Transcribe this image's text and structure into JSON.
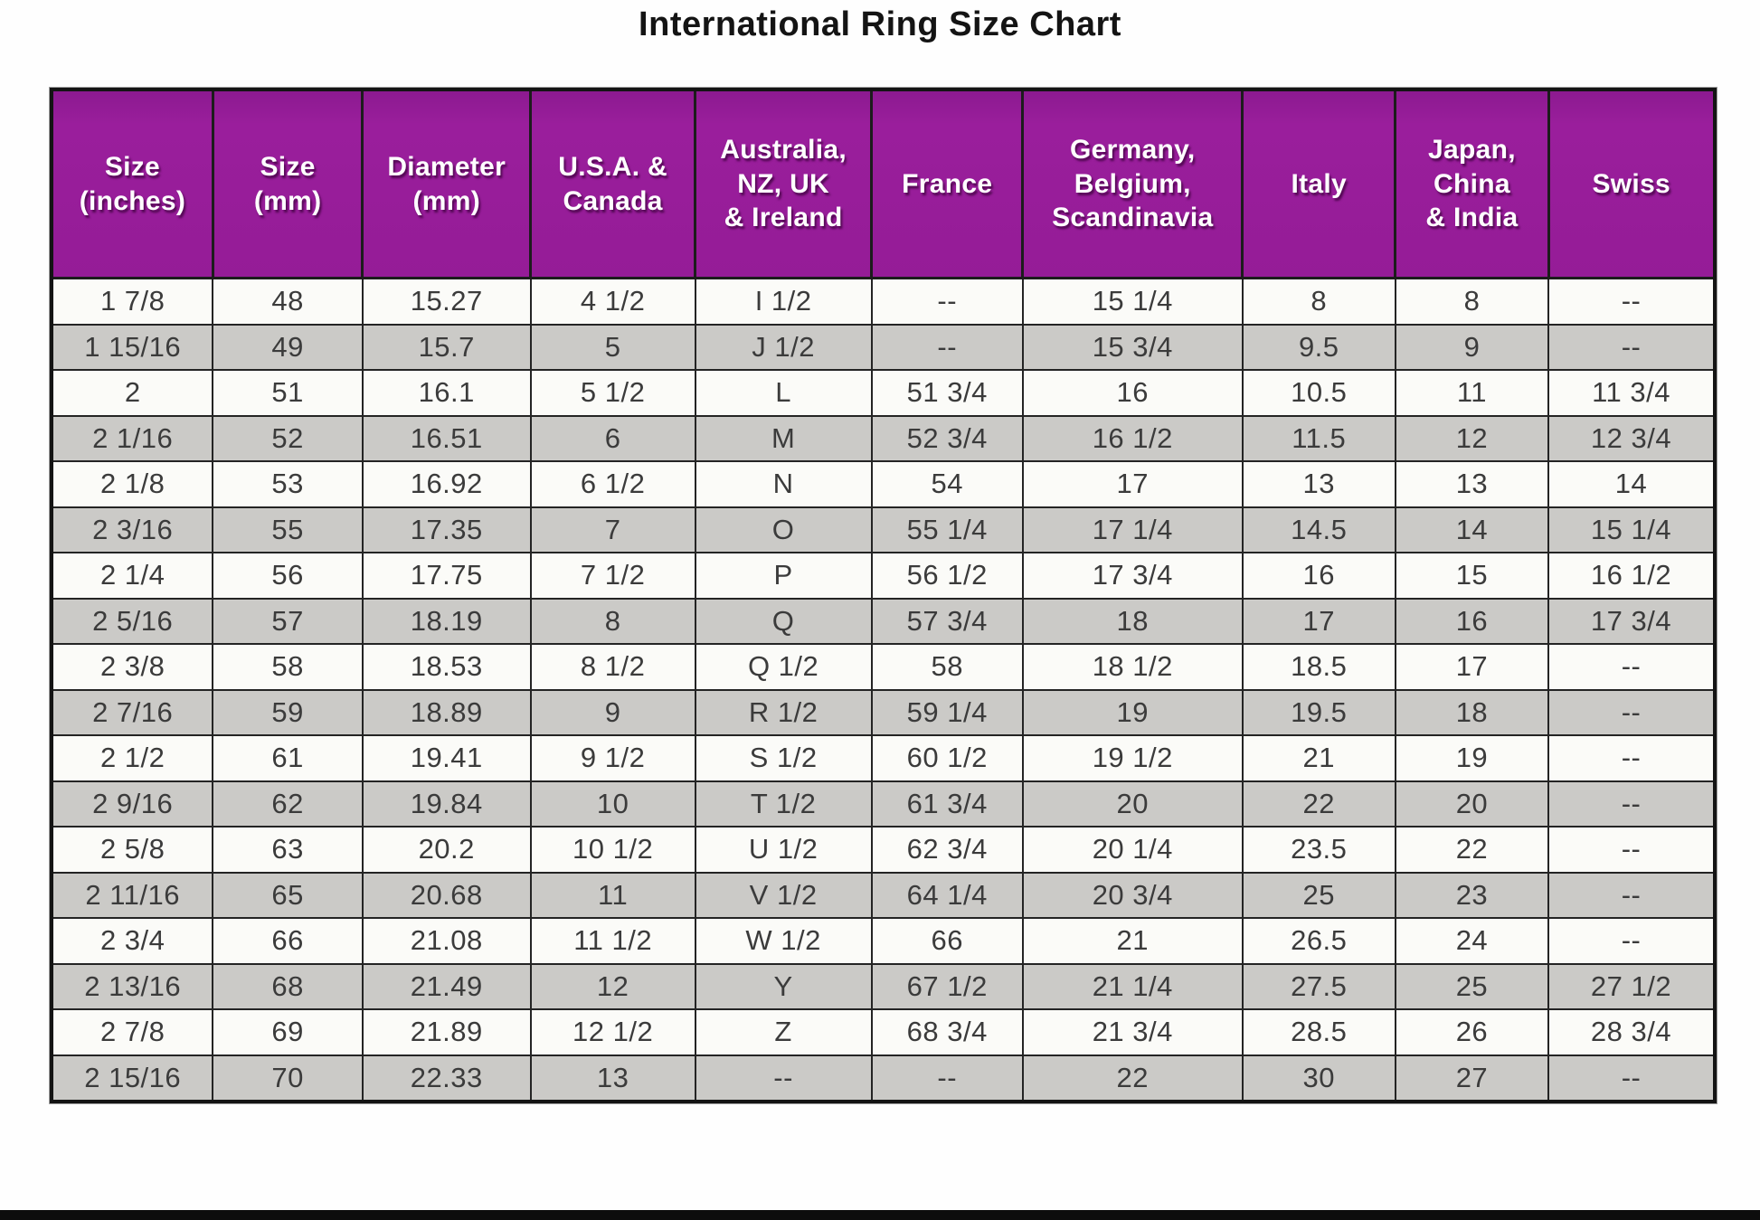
{
  "title": "International Ring Size Chart",
  "colors": {
    "header_bg": "#941c96",
    "header_text": "#ffffff",
    "row_bg": "#fbfbf8",
    "row_alt_bg": "#cbcac7",
    "border": "#242424",
    "cell_text": "#3b3b3b",
    "bottom_bar": "#0d0d0d"
  },
  "chart_data": {
    "type": "table",
    "title": "International Ring Size Chart",
    "columns": [
      "Size\n(inches)",
      "Size\n(mm)",
      "Diameter\n(mm)",
      "U.S.A. &\nCanada",
      "Australia,\nNZ, UK\n& Ireland",
      "France",
      "Germany,\nBelgium,\nScandinavia",
      "Italy",
      "Japan,\nChina\n& India",
      "Swiss"
    ],
    "rows": [
      [
        "1 7/8",
        "48",
        "15.27",
        "4 1/2",
        "I 1/2",
        "--",
        "15 1/4",
        "8",
        "8",
        "--"
      ],
      [
        "1 15/16",
        "49",
        "15.7",
        "5",
        "J 1/2",
        "--",
        "15 3/4",
        "9.5",
        "9",
        "--"
      ],
      [
        "2",
        "51",
        "16.1",
        "5 1/2",
        "L",
        "51 3/4",
        "16",
        "10.5",
        "11",
        "11 3/4"
      ],
      [
        "2 1/16",
        "52",
        "16.51",
        "6",
        "M",
        "52 3/4",
        "16 1/2",
        "11.5",
        "12",
        "12 3/4"
      ],
      [
        "2 1/8",
        "53",
        "16.92",
        "6 1/2",
        "N",
        "54",
        "17",
        "13",
        "13",
        "14"
      ],
      [
        "2 3/16",
        "55",
        "17.35",
        "7",
        "O",
        "55 1/4",
        "17 1/4",
        "14.5",
        "14",
        "15 1/4"
      ],
      [
        "2 1/4",
        "56",
        "17.75",
        "7 1/2",
        "P",
        "56 1/2",
        "17 3/4",
        "16",
        "15",
        "16 1/2"
      ],
      [
        "2 5/16",
        "57",
        "18.19",
        "8",
        "Q",
        "57 3/4",
        "18",
        "17",
        "16",
        "17 3/4"
      ],
      [
        "2 3/8",
        "58",
        "18.53",
        "8 1/2",
        "Q 1/2",
        "58",
        "18 1/2",
        "18.5",
        "17",
        "--"
      ],
      [
        "2 7/16",
        "59",
        "18.89",
        "9",
        "R 1/2",
        "59 1/4",
        "19",
        "19.5",
        "18",
        "--"
      ],
      [
        "2 1/2",
        "61",
        "19.41",
        "9 1/2",
        "S 1/2",
        "60 1/2",
        "19 1/2",
        "21",
        "19",
        "--"
      ],
      [
        "2 9/16",
        "62",
        "19.84",
        "10",
        "T 1/2",
        "61 3/4",
        "20",
        "22",
        "20",
        "--"
      ],
      [
        "2 5/8",
        "63",
        "20.2",
        "10 1/2",
        "U 1/2",
        "62 3/4",
        "20 1/4",
        "23.5",
        "22",
        "--"
      ],
      [
        "2 11/16",
        "65",
        "20.68",
        "11",
        "V 1/2",
        "64 1/4",
        "20 3/4",
        "25",
        "23",
        "--"
      ],
      [
        "2 3/4",
        "66",
        "21.08",
        "11 1/2",
        "W 1/2",
        "66",
        "21",
        "26.5",
        "24",
        "--"
      ],
      [
        "2 13/16",
        "68",
        "21.49",
        "12",
        "Y",
        "67 1/2",
        "21 1/4",
        "27.5",
        "25",
        "27 1/2"
      ],
      [
        "2 7/8",
        "69",
        "21.89",
        "12 1/2",
        "Z",
        "68 3/4",
        "21 3/4",
        "28.5",
        "26",
        "28 3/4"
      ],
      [
        "2 15/16",
        "70",
        "22.33",
        "13",
        "--",
        "--",
        "22",
        "30",
        "27",
        "--"
      ]
    ]
  }
}
